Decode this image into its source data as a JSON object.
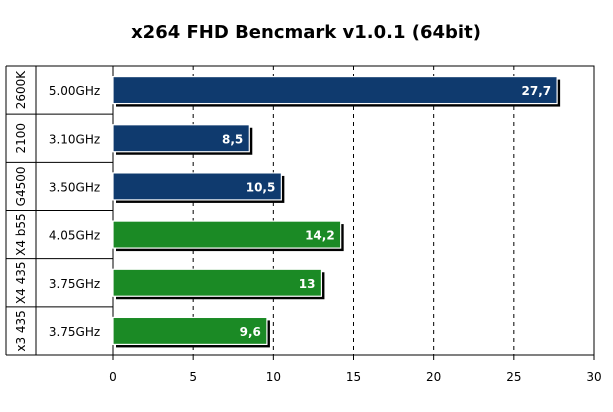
{
  "chart_data": {
    "type": "bar",
    "orientation": "horizontal",
    "title": "x264 FHD Bencmark v1.0.1 (64bit)",
    "groups": [
      "2600K",
      "2100",
      "G4500",
      "X4 b55",
      "X4 435",
      "x3 435"
    ],
    "categories": [
      "5.00GHz",
      "3.10GHz",
      "3.50GHz",
      "4.05GHz",
      "3.75GHz",
      "3.75GHz"
    ],
    "values": [
      27.7,
      8.5,
      10.5,
      14.2,
      13,
      9.6
    ],
    "value_labels": [
      "27,7",
      "8,5",
      "10,5",
      "14,2",
      "13",
      "9,6"
    ],
    "bar_colors": [
      "#0f3a6e",
      "#0f3a6e",
      "#0f3a6e",
      "#1b8a25",
      "#1b8a25",
      "#1b8a25"
    ],
    "xlim": [
      0,
      30
    ],
    "xticks": [
      0,
      5,
      10,
      15,
      20,
      25,
      30
    ],
    "xtick_labels": [
      "0",
      "5",
      "10",
      "15",
      "20",
      "25",
      "30"
    ],
    "xlabel": "",
    "ylabel": "",
    "grid": "vertical-dashed",
    "legend": "none"
  }
}
